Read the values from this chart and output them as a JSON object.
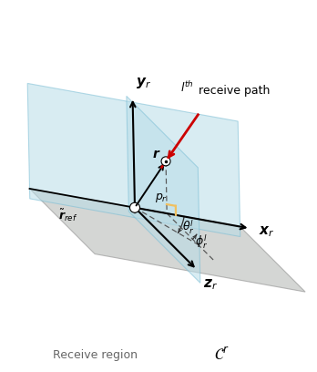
{
  "background_color": "#ffffff",
  "plane_color_blue": "#b8dde8",
  "plane_color_gray": "#b8bcb8",
  "plane_alpha_blue": 0.55,
  "plane_alpha_gray": 0.6,
  "plane_edge_blue": "#7abdd4",
  "plane_edge_gray": "#909090",
  "red_color": "#cc0000",
  "orange_color": "#f0c060",
  "black": "#000000",
  "dark_gray": "#444444",
  "receive_region_text": "Receive region",
  "C_r_text": "$\\mathcal{C}^r$"
}
